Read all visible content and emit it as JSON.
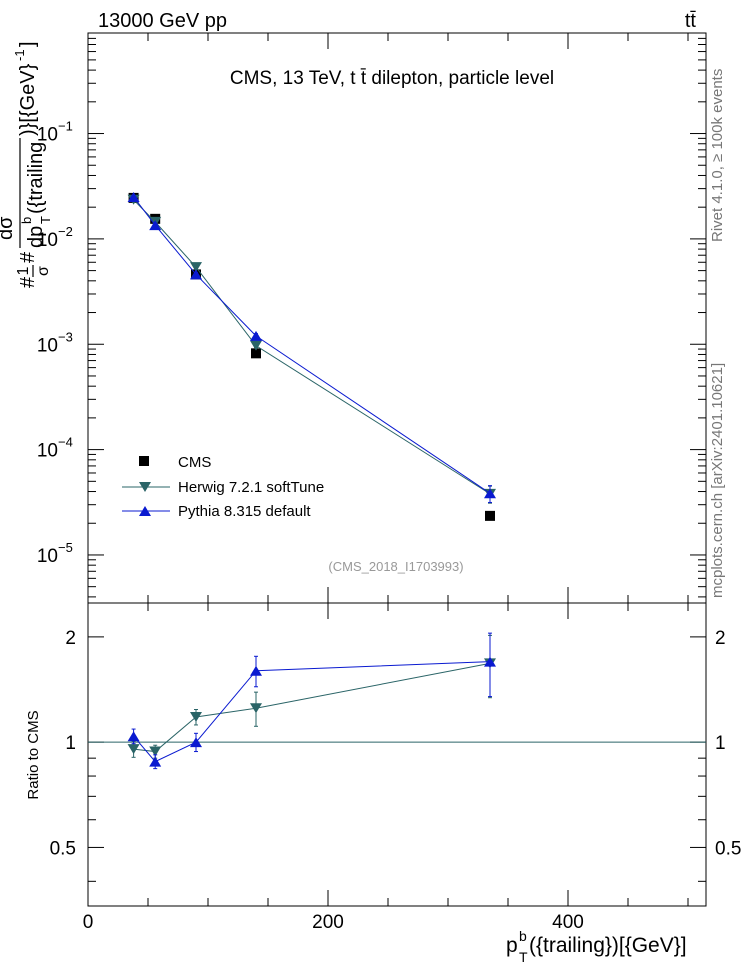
{
  "header": {
    "left": "13000 GeV pp",
    "right": "tt̄"
  },
  "side_labels": {
    "rivet": "Rivet 4.1.0, ≥ 100k events",
    "mcplots": "mcplots.cern.ch [arXiv:2401.10621]"
  },
  "colors": {
    "cms": "#000000",
    "herwig": "#2a6467",
    "pythia": "#0a1ad0",
    "axis": "#000000",
    "watermark": "#999999"
  },
  "chart_data": [
    {
      "type": "scatter",
      "name": "main",
      "title": "CMS, 13 TeV, t t̄ dilepton, particle level",
      "watermark": "(CMS_2018_I1703993)",
      "ylabel": "#frac{1}{#sigma}#frac{dσ}{dp_{T}^{b}({trailing})}[{GeV}^{-1}]",
      "ylabel_parts": {
        "frac1_num": "1",
        "frac1_den": "σ",
        "hash": "#",
        "frac2_num": "dσ",
        "frac2_den_base": "dp",
        "frac2_den_sub": "T",
        "frac2_den_sup": "b",
        "frac2_den_tail": "({trailing",
        "tail": ")}[{GeV}",
        "tail_sup": "-1",
        "tail_end": "]"
      },
      "yscale": "log",
      "ylim": [
        3.5e-06,
        0.9
      ],
      "xlim": [
        0,
        515
      ],
      "y_tick_labels": [
        {
          "value": 0.1,
          "base": "10",
          "exp": "−1"
        },
        {
          "value": 0.01,
          "base": "10",
          "exp": "−2"
        },
        {
          "value": 0.001,
          "base": "10",
          "exp": "−3"
        },
        {
          "value": 0.0001,
          "base": "10",
          "exp": "−4"
        },
        {
          "value": 1e-05,
          "base": "10",
          "exp": "−5"
        }
      ],
      "legend": {
        "position": "bottom-left",
        "entries": [
          "CMS",
          "Herwig 7.2.1 softTune",
          "Pythia 8.315 default"
        ]
      },
      "series": [
        {
          "name": "CMS",
          "marker": "square",
          "x": [
            38,
            56,
            90,
            140,
            335
          ],
          "y": [
            0.0245,
            0.0155,
            0.0046,
            0.00082,
            2.35e-05
          ]
        },
        {
          "name": "Herwig 7.2.1 softTune",
          "marker": "triangle-down",
          "x": [
            38,
            56,
            90,
            140,
            335
          ],
          "y": [
            0.0235,
            0.0145,
            0.0054,
            0.00097,
            3.8e-05
          ],
          "err": [
            0.0008,
            0.0005,
            0.0002,
            4e-05,
            7e-06
          ]
        },
        {
          "name": "Pythia 8.315 default",
          "marker": "triangle-up",
          "x": [
            38,
            56,
            90,
            140,
            335
          ],
          "y": [
            0.025,
            0.0135,
            0.0046,
            0.0012,
            3.85e-05
          ],
          "err": [
            0.0008,
            0.0005,
            0.0002,
            6e-05,
            7e-06
          ]
        }
      ]
    },
    {
      "type": "scatter",
      "name": "ratio",
      "ylabel": "Ratio to CMS",
      "xlabel_parts": {
        "base": "p",
        "sub": "T",
        "sup": "b",
        "tail": "({trailing})[{GeV}]"
      },
      "yscale": "log",
      "ylim": [
        0.34,
        2.5
      ],
      "xlim": [
        0,
        515
      ],
      "x_ticks": [
        0,
        200,
        400
      ],
      "x_tick_labels": [
        "0",
        "200",
        "400"
      ],
      "y_ticks": [
        0.5,
        1,
        2
      ],
      "y_tick_labels": [
        "0.5",
        "1",
        "2"
      ],
      "reference_line": 1,
      "series": [
        {
          "name": "Herwig 7.2.1 softTune",
          "marker": "triangle-down",
          "x": [
            38,
            56,
            90,
            140,
            335
          ],
          "y": [
            0.955,
            0.94,
            1.18,
            1.25,
            1.68
          ],
          "err": [
            0.05,
            0.04,
            0.06,
            0.14,
            0.34
          ]
        },
        {
          "name": "Pythia 8.315 default",
          "marker": "triangle-up",
          "x": [
            38,
            56,
            90,
            140,
            335
          ],
          "y": [
            1.04,
            0.88,
            1.0,
            1.6,
            1.7
          ],
          "err": [
            0.05,
            0.04,
            0.06,
            0.16,
            0.35
          ]
        }
      ]
    }
  ]
}
